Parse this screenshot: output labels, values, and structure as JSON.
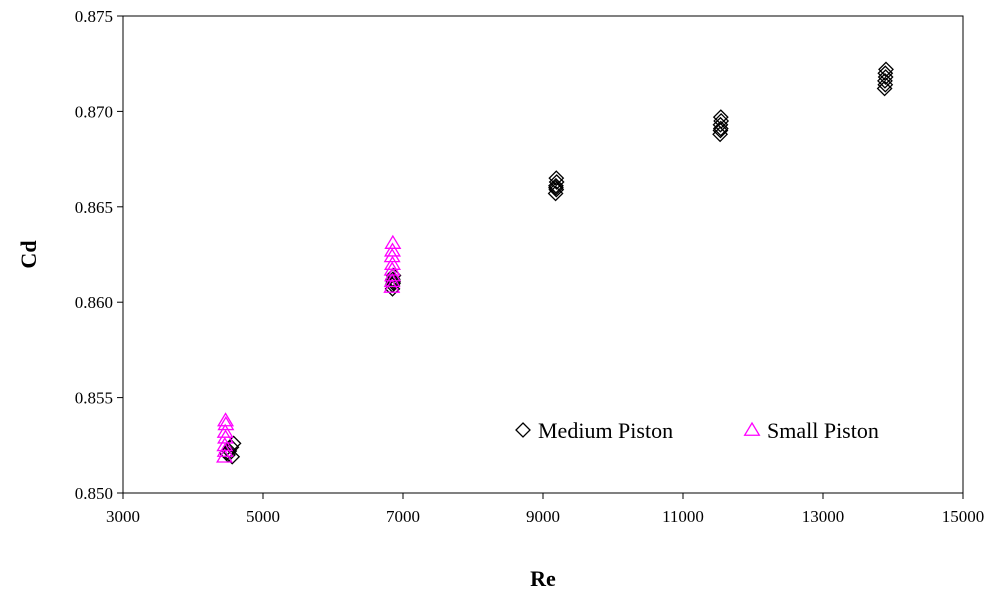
{
  "chart_data": {
    "type": "scatter",
    "title": "",
    "xlabel": "Re",
    "ylabel": "Cd",
    "xlim": [
      3000,
      15000
    ],
    "ylim": [
      0.85,
      0.875
    ],
    "x_ticks": [
      3000,
      5000,
      7000,
      9000,
      11000,
      13000,
      15000
    ],
    "y_ticks": [
      "0.850",
      "0.855",
      "0.860",
      "0.865",
      "0.870",
      "0.875"
    ],
    "grid": false,
    "legend_position": "bottom-right",
    "series": [
      {
        "name": "Medium Piston",
        "marker": "diamond",
        "color": "#000000",
        "points": [
          [
            4500,
            0.852
          ],
          [
            4520,
            0.8522
          ],
          [
            4550,
            0.8524
          ],
          [
            4580,
            0.8526
          ],
          [
            4480,
            0.8521
          ],
          [
            4560,
            0.8519
          ],
          [
            6850,
            0.8607
          ],
          [
            6860,
            0.861
          ],
          [
            6855,
            0.8612
          ],
          [
            6865,
            0.8614
          ],
          [
            6850,
            0.8609
          ],
          [
            6860,
            0.8611
          ],
          [
            9180,
            0.8657
          ],
          [
            9190,
            0.8659
          ],
          [
            9185,
            0.8661
          ],
          [
            9195,
            0.8663
          ],
          [
            9190,
            0.8665
          ],
          [
            9185,
            0.866
          ],
          [
            11530,
            0.8688
          ],
          [
            11540,
            0.8691
          ],
          [
            11535,
            0.8693
          ],
          [
            11545,
            0.8695
          ],
          [
            11540,
            0.8697
          ],
          [
            11535,
            0.869
          ],
          [
            13880,
            0.8712
          ],
          [
            13890,
            0.8714
          ],
          [
            13885,
            0.8716
          ],
          [
            13895,
            0.8718
          ],
          [
            13890,
            0.872
          ],
          [
            13900,
            0.8722
          ]
        ]
      },
      {
        "name": "Small Piston",
        "marker": "triangle",
        "color": "#ff00ff",
        "points": [
          [
            4450,
            0.8519
          ],
          [
            4460,
            0.8522
          ],
          [
            4455,
            0.8525
          ],
          [
            4465,
            0.8529
          ],
          [
            4460,
            0.8532
          ],
          [
            4470,
            0.8536
          ],
          [
            4465,
            0.8538
          ],
          [
            6840,
            0.8608
          ],
          [
            6845,
            0.8611
          ],
          [
            6850,
            0.8614
          ],
          [
            6845,
            0.8617
          ],
          [
            6850,
            0.862
          ],
          [
            6845,
            0.8624
          ],
          [
            6850,
            0.8627
          ],
          [
            6855,
            0.8631
          ]
        ]
      }
    ]
  }
}
